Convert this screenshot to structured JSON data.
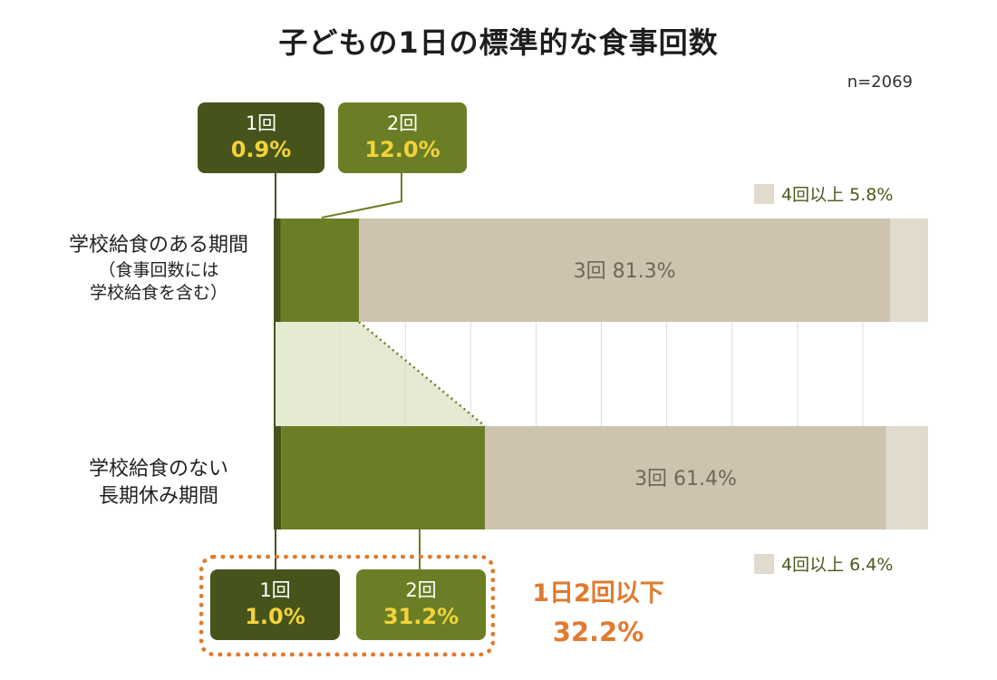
{
  "title": "子どもの1日の標準的な食事回数",
  "n_label": "n=2069",
  "chart_data": {
    "type": "bar",
    "stacked": true,
    "orientation": "horizontal",
    "title": "子どもの1日の標準的な食事回数",
    "xlim": [
      0,
      100
    ],
    "categories": [
      {
        "label": "学校給食のある期間",
        "note": "（食事回数には\n学校給食を含む）"
      },
      {
        "label": "学校給食のない\n長期休み期間",
        "note": ""
      }
    ],
    "series": [
      {
        "name": "1回",
        "color": "#46541b",
        "values": [
          0.9,
          1.0
        ]
      },
      {
        "name": "2回",
        "color": "#6a7f25",
        "values": [
          12.0,
          31.2
        ]
      },
      {
        "name": "3回",
        "color": "#cdc3af",
        "values": [
          81.3,
          61.4
        ]
      },
      {
        "name": "4回以上",
        "color": "#e0dbcd",
        "values": [
          5.8,
          6.4
        ]
      }
    ]
  },
  "callouts": {
    "top": [
      {
        "label": "1回",
        "value": "0.9%"
      },
      {
        "label": "2回",
        "value": "12.0%"
      }
    ],
    "bottom": [
      {
        "label": "1回",
        "value": "1.0%"
      },
      {
        "label": "2回",
        "value": "31.2%"
      }
    ]
  },
  "inbar": {
    "top": "3回 81.3%",
    "bottom": "3回 61.4%"
  },
  "legend": {
    "top": "4回以上 5.8%",
    "bottom": "4回以上 6.4%"
  },
  "summary": {
    "line1": "1日2回以下",
    "line2": "32.2%"
  }
}
